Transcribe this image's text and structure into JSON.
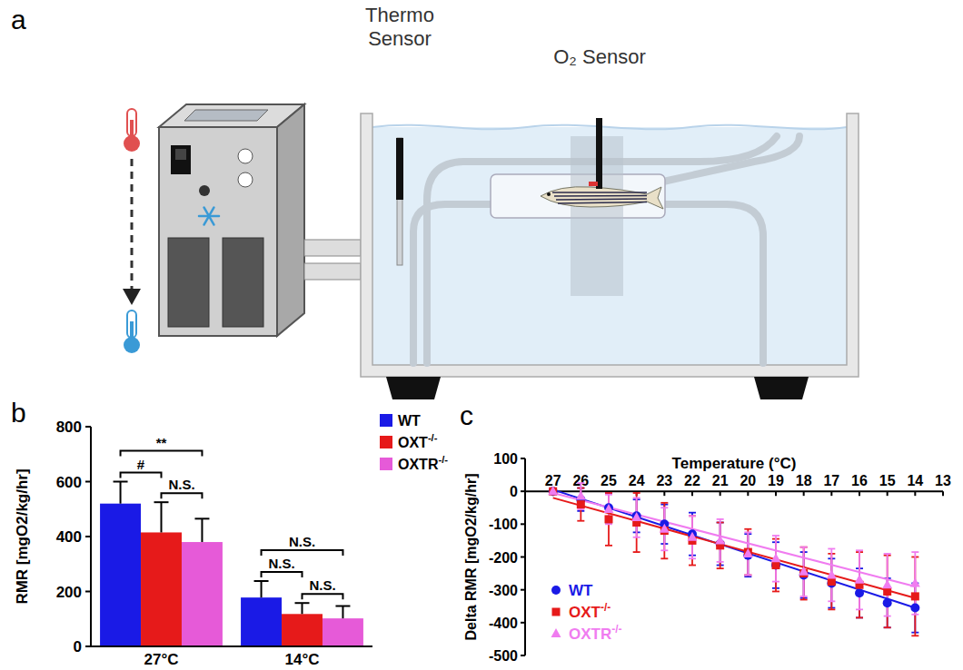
{
  "diagram": {
    "panel": "a",
    "thermo_sensor": "Thermo Sensor",
    "o2_sensor": "O₂ Sensor"
  },
  "chart_data": [
    {
      "panel": "b",
      "type": "bar",
      "categories": [
        "27°C",
        "14°C"
      ],
      "y_label": "RMR [mgO2/kg/hr]",
      "ylim": [
        0,
        800
      ],
      "yticks": [
        0,
        200,
        400,
        600,
        800
      ],
      "legend": "upper right",
      "series": [
        {
          "name": "WT",
          "color": "#1a1ae6",
          "values": [
            520,
            178
          ],
          "errors": [
            80,
            60
          ]
        },
        {
          "name": "OXT-/-",
          "color": "#e61a1a",
          "values": [
            415,
            118
          ],
          "errors": [
            110,
            40
          ]
        },
        {
          "name": "OXTR-/-",
          "color": "#e65ad8",
          "values": [
            380,
            102
          ],
          "errors": [
            85,
            45
          ]
        }
      ],
      "brackets": [
        {
          "category": "27°C",
          "between": [
            "WT",
            "OXT-/-"
          ],
          "label": "#"
        },
        {
          "category": "27°C",
          "between": [
            "OXT-/-",
            "OXTR-/-"
          ],
          "label": "N.S."
        },
        {
          "category": "27°C",
          "between": [
            "WT",
            "OXTR-/-"
          ],
          "label": "**"
        },
        {
          "category": "14°C",
          "between": [
            "WT",
            "OXT-/-"
          ],
          "label": "N.S."
        },
        {
          "category": "14°C",
          "between": [
            "OXT-/-",
            "OXTR-/-"
          ],
          "label": "N.S."
        },
        {
          "category": "14°C",
          "between": [
            "WT",
            "OXTR-/-"
          ],
          "label": "N.S."
        }
      ]
    },
    {
      "panel": "c",
      "type": "scatter",
      "x_label": "Temperature (°C)",
      "y_label": "Delta RMR [mgO2/kg/hr]",
      "x": [
        27,
        26,
        25,
        24,
        23,
        22,
        21,
        20,
        19,
        18,
        17,
        16,
        15,
        14
      ],
      "xlim": [
        28,
        13
      ],
      "xticks": [
        27,
        26,
        25,
        24,
        23,
        22,
        21,
        20,
        19,
        18,
        17,
        16,
        15,
        14,
        13
      ],
      "ylim": [
        -500,
        100
      ],
      "yticks": [
        -500,
        -400,
        -300,
        -200,
        -100,
        0,
        100
      ],
      "legend": "lower left",
      "series": [
        {
          "name": "WT",
          "color": "#1a1ae6",
          "marker": "circle",
          "values": [
            0,
            -25,
            -50,
            -75,
            -100,
            -130,
            -160,
            -195,
            -225,
            -255,
            -280,
            -310,
            -340,
            -355
          ],
          "errors": [
            0,
            35,
            45,
            50,
            60,
            65,
            65,
            65,
            70,
            70,
            75,
            75,
            75,
            75
          ],
          "fit": [
            5,
            -355
          ]
        },
        {
          "name": "OXT-/-",
          "color": "#e61a1a",
          "marker": "square",
          "values": [
            0,
            -40,
            -85,
            -95,
            -120,
            -150,
            -165,
            -185,
            -225,
            -250,
            -275,
            -285,
            -305,
            -320
          ],
          "errors": [
            0,
            50,
            80,
            90,
            85,
            75,
            70,
            70,
            80,
            80,
            85,
            100,
            110,
            120
          ],
          "fit": [
            -20,
            -325
          ]
        },
        {
          "name": "OXTR-/-",
          "color": "#f07cf0",
          "marker": "triangle",
          "values": [
            0,
            -15,
            -55,
            -80,
            -115,
            -140,
            -150,
            -190,
            -205,
            -245,
            -255,
            -270,
            -285,
            -280
          ],
          "errors": [
            0,
            40,
            45,
            60,
            65,
            65,
            65,
            65,
            70,
            75,
            80,
            90,
            95,
            95
          ],
          "fit": [
            -5,
            -290
          ]
        }
      ]
    }
  ]
}
